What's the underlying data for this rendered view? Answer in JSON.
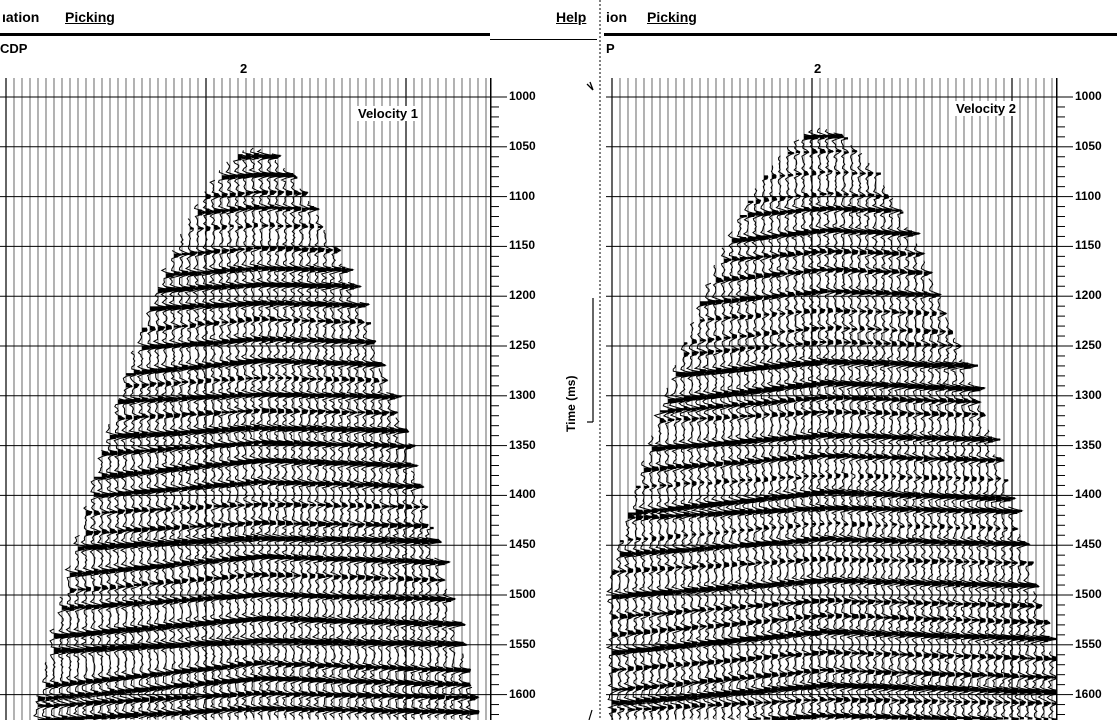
{
  "left_window": {
    "menu": {
      "item1": "ıation",
      "item2": "Picking",
      "help": "Help"
    },
    "header_label": "CDP",
    "cdp_number": "2",
    "panel_label": "Velocity 1"
  },
  "right_window": {
    "menu": {
      "item1": "ion",
      "item2": "Picking"
    },
    "header_label": "P",
    "cdp_number": "2",
    "panel_label": "Velocity 2"
  },
  "time_axis": {
    "label": "Time (ms)",
    "ticks": [
      "1000",
      "1050",
      "1100",
      "1150",
      "1200",
      "1250",
      "1300",
      "1350",
      "1400",
      "1450",
      "1500",
      "1550",
      "1600"
    ]
  },
  "colors": {
    "ink": "#000000",
    "background": "#ffffff"
  }
}
